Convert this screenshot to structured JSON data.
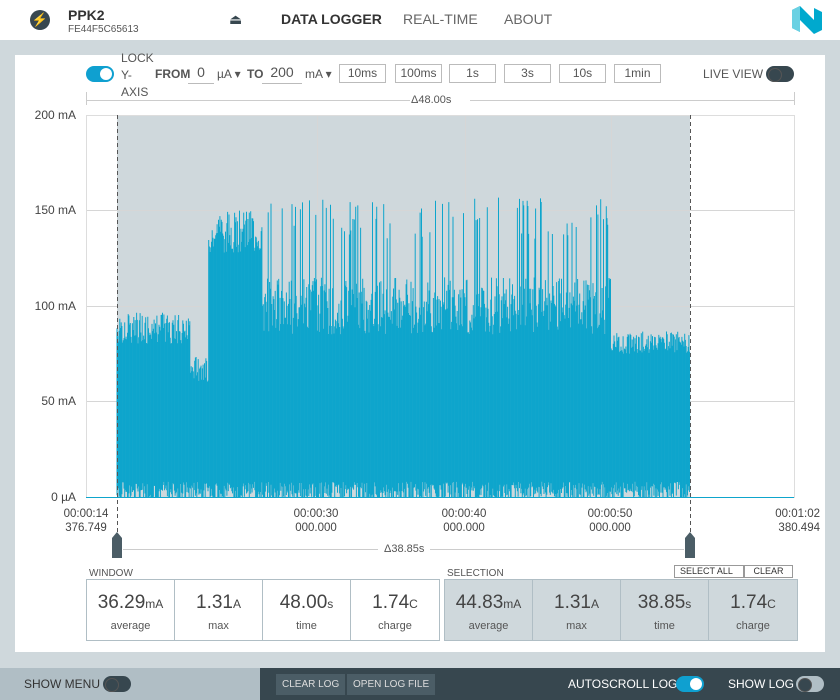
{
  "header": {
    "device_name": "PPK2",
    "device_serial": "FE44F5C65613",
    "nav": [
      "DATA LOGGER",
      "REAL-TIME",
      "ABOUT"
    ]
  },
  "toolbar": {
    "lock_label_1": "LOCK",
    "lock_label_2": "Y-",
    "lock_label_3": "AXIS",
    "from_label": "FROM",
    "from_value": "0",
    "from_unit": "µA ▾",
    "to_label": "TO",
    "to_value": "200",
    "to_unit": "mA ▾",
    "windows": [
      "10ms",
      "100ms",
      "1s",
      "3s",
      "10s",
      "1min"
    ],
    "live_view": "LIVE VIEW"
  },
  "chart": {
    "window_delta": "Δ48.00s",
    "y_ticks": [
      "200 mA",
      "150 mA",
      "100 mA",
      "50 mA",
      "0 µA"
    ],
    "x_ticks": [
      {
        "t": "00:00:14",
        "ms": "376.749"
      },
      {
        "t": "00:00:30",
        "ms": "000.000"
      },
      {
        "t": "00:00:40",
        "ms": "000.000"
      },
      {
        "t": "00:00:50",
        "ms": "000.000"
      },
      {
        "t": "00:01:02",
        "ms": "380.494"
      }
    ],
    "selection_delta": "Δ38.85s",
    "trace_color": "#0ea5cc"
  },
  "window": {
    "title": "WINDOW",
    "stats": [
      {
        "v": "36.29",
        "u": "mA",
        "c": "average"
      },
      {
        "v": "1.31",
        "u": "A",
        "c": "max"
      },
      {
        "v": "48.00",
        "u": "s",
        "c": "time"
      },
      {
        "v": "1.74",
        "u": "C",
        "c": "charge"
      }
    ]
  },
  "selection": {
    "title": "SELECTION",
    "select_all": "SELECT ALL",
    "clear": "CLEAR",
    "stats": [
      {
        "v": "44.83",
        "u": "mA",
        "c": "average"
      },
      {
        "v": "1.31",
        "u": "A",
        "c": "max"
      },
      {
        "v": "38.85",
        "u": "s",
        "c": "time"
      },
      {
        "v": "1.74",
        "u": "C",
        "c": "charge"
      }
    ]
  },
  "footer": {
    "show_menu": "SHOW MENU",
    "clear_log": "CLEAR LOG",
    "open_log": "OPEN LOG FILE",
    "autoscroll": "AUTOSCROLL LOG",
    "show_log": "SHOW LOG"
  }
}
